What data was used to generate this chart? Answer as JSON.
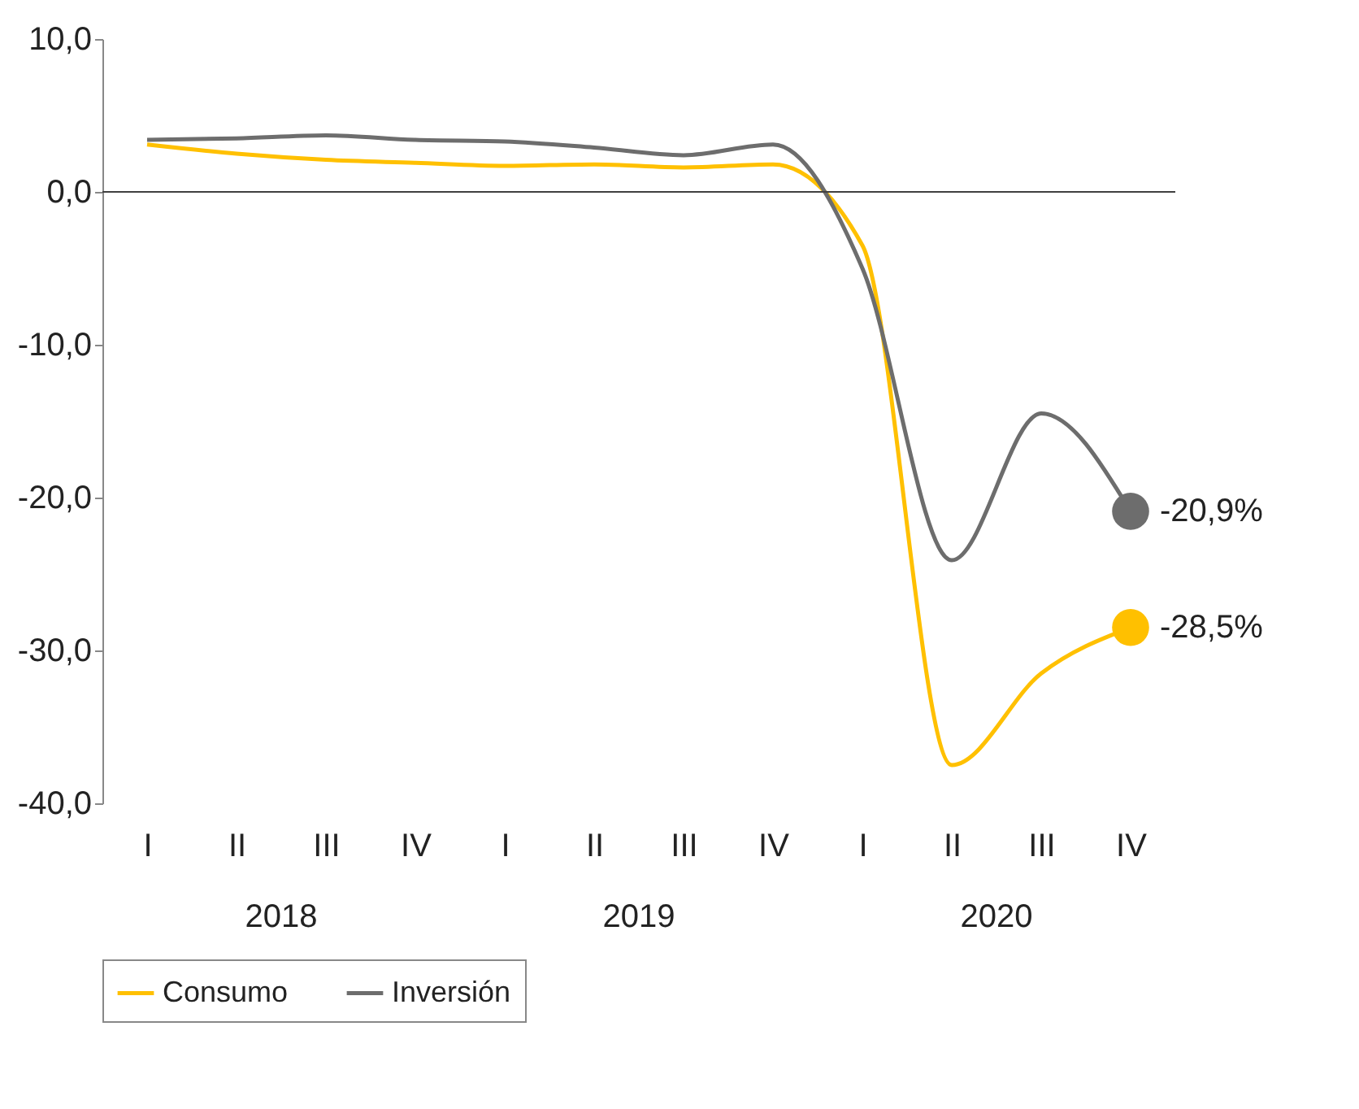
{
  "chart_data": {
    "type": "line",
    "categories": [
      "I",
      "II",
      "III",
      "IV",
      "I",
      "II",
      "III",
      "IV",
      "I",
      "II",
      "III",
      "IV"
    ],
    "ylim": [
      -40,
      10
    ],
    "yticks": [
      {
        "value": 10,
        "label": "10,0"
      },
      {
        "value": 0,
        "label": "0,0"
      },
      {
        "value": -10,
        "label": "-10,0"
      },
      {
        "value": -20,
        "label": "-20,0"
      },
      {
        "value": -30,
        "label": "-30,0"
      },
      {
        "value": -40,
        "label": "-40,0"
      }
    ],
    "series": [
      {
        "name": "Consumo",
        "color": "#ffc000",
        "values": [
          3.1,
          2.5,
          2.1,
          1.9,
          1.7,
          1.8,
          1.6,
          1.8,
          -3.5,
          -37.5,
          -31.5,
          -28.5
        ],
        "value_labels": [
          null,
          null,
          null,
          null,
          null,
          null,
          null,
          null,
          null,
          null,
          null,
          "-28,5%"
        ]
      },
      {
        "name": "Inversión",
        "color": "#6d6d6d",
        "values": [
          3.4,
          3.5,
          3.7,
          3.4,
          3.3,
          2.9,
          2.4,
          3.1,
          -5.0,
          -24.1,
          -14.5,
          -20.9
        ],
        "value_labels": [
          null,
          null,
          null,
          null,
          null,
          null,
          null,
          null,
          null,
          null,
          null,
          "-20,9%"
        ]
      }
    ],
    "annotations": [
      "2018",
      "2019",
      "2020"
    ],
    "ref_lines": [
      {
        "axis": "y",
        "value": 0,
        "color": "#404040"
      }
    ],
    "grid": false,
    "legend": "bottom",
    "line_style": "solid"
  }
}
